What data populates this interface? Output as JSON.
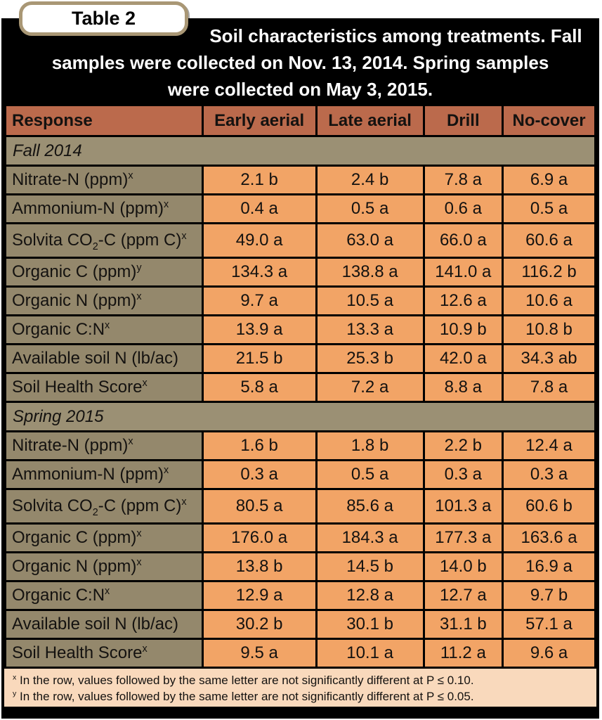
{
  "colors": {
    "page_bg": "#ffffff",
    "table_frame": "#000000",
    "title_text": "#ffffff",
    "header_bg": "#bb6a4c",
    "section_bg": "#9b9074",
    "label_bg": "#94886c",
    "value_bg": "#f2a466",
    "footnote_bg": "#f9d9bc",
    "badge_bg": "#ffffff",
    "badge_border": "#a99775",
    "cell_text": "#141210"
  },
  "badge": {
    "label": "Table 2"
  },
  "title_lines": [
    "Soil characteristics among treatments. Fall",
    "samples were collected on Nov. 13, 2014. Spring samples",
    "were collected on May 3, 2015."
  ],
  "chart_data": {
    "type": "table",
    "title": "Soil characteristics among treatments. Fall samples were collected on Nov. 13, 2014. Spring samples were collected on May 3, 2015.",
    "columns": [
      "Response",
      "Early aerial",
      "Late aerial",
      "Drill",
      "No-cover"
    ],
    "sections": [
      {
        "label": "Fall 2014",
        "rows": [
          {
            "label": "Nitrate-N (ppm)",
            "label_sup": "x",
            "values": [
              "2.1 b",
              "2.4 b",
              "7.8 a",
              "6.9 a"
            ]
          },
          {
            "label": "Ammonium-N (ppm)",
            "label_sup": "x",
            "values": [
              "0.4 a",
              "0.5 a",
              "0.6 a",
              "0.5 a"
            ]
          },
          {
            "label": "Solvita CO",
            "label_sub": "2",
            "label_post": "-C (ppm C)",
            "label_sup": "x",
            "values": [
              "49.0 a",
              "63.0 a",
              "66.0 a",
              "60.6 a"
            ]
          },
          {
            "label": "Organic C (ppm)",
            "label_sup": "y",
            "values": [
              "134.3 a",
              "138.8 a",
              "141.0 a",
              "116.2 b"
            ]
          },
          {
            "label": "Organic N (ppm)",
            "label_sup": "x",
            "values": [
              "9.7 a",
              "10.5 a",
              "12.6 a",
              "10.6 a"
            ]
          },
          {
            "label": "Organic C:N",
            "label_sup": "x",
            "values": [
              "13.9 a",
              "13.3 a",
              "10.9 b",
              "10.8 b"
            ]
          },
          {
            "label": "Available soil N (lb/ac)",
            "values": [
              "21.5 b",
              "25.3 b",
              "42.0 a",
              "34.3 ab"
            ]
          },
          {
            "label": "Soil Health Score",
            "label_sup": "x",
            "values": [
              "5.8 a",
              "7.2 a",
              "8.8 a",
              "7.8 a"
            ]
          }
        ]
      },
      {
        "label": "Spring 2015",
        "rows": [
          {
            "label": "Nitrate-N (ppm)",
            "label_sup": "x",
            "values": [
              "1.6 b",
              "1.8 b",
              "2.2 b",
              "12.4 a"
            ]
          },
          {
            "label": "Ammonium-N (ppm)",
            "label_sup": "x",
            "values": [
              "0.3 a",
              "0.5 a",
              "0.3 a",
              "0.3 a"
            ]
          },
          {
            "label": "Solvita CO",
            "label_sub": "2",
            "label_post": "-C (ppm C)",
            "label_sup": "x",
            "values": [
              "80.5 a",
              "85.6 a",
              "101.3 a",
              "60.6 b"
            ]
          },
          {
            "label": "Organic C (ppm)",
            "label_sup": "x",
            "values": [
              "176.0 a",
              "184.3 a",
              "177.3 a",
              "163.6 a"
            ]
          },
          {
            "label": "Organic N (ppm)",
            "label_sup": "x",
            "values": [
              "13.8 b",
              "14.5 b",
              "14.0 b",
              "16.9 a"
            ]
          },
          {
            "label": "Organic C:N",
            "label_sup": "x",
            "values": [
              "12.9 a",
              "12.8 a",
              "12.7 a",
              "9.7 b"
            ]
          },
          {
            "label": "Available soil N (lb/ac)",
            "values": [
              "30.2 b",
              "30.1 b",
              "31.1 b",
              "57.1 a"
            ]
          },
          {
            "label": "Soil Health Score",
            "label_sup": "x",
            "values": [
              "9.5 a",
              "10.1 a",
              "11.2 a",
              "9.6 a"
            ]
          }
        ]
      }
    ],
    "footnotes": [
      {
        "sup": "x",
        "text": "In the row, values followed by the same letter are not significantly different at P ≤ 0.10."
      },
      {
        "sup": "y",
        "text": "In the row, values followed by the same letter are not significantly different at P ≤ 0.05."
      }
    ]
  }
}
